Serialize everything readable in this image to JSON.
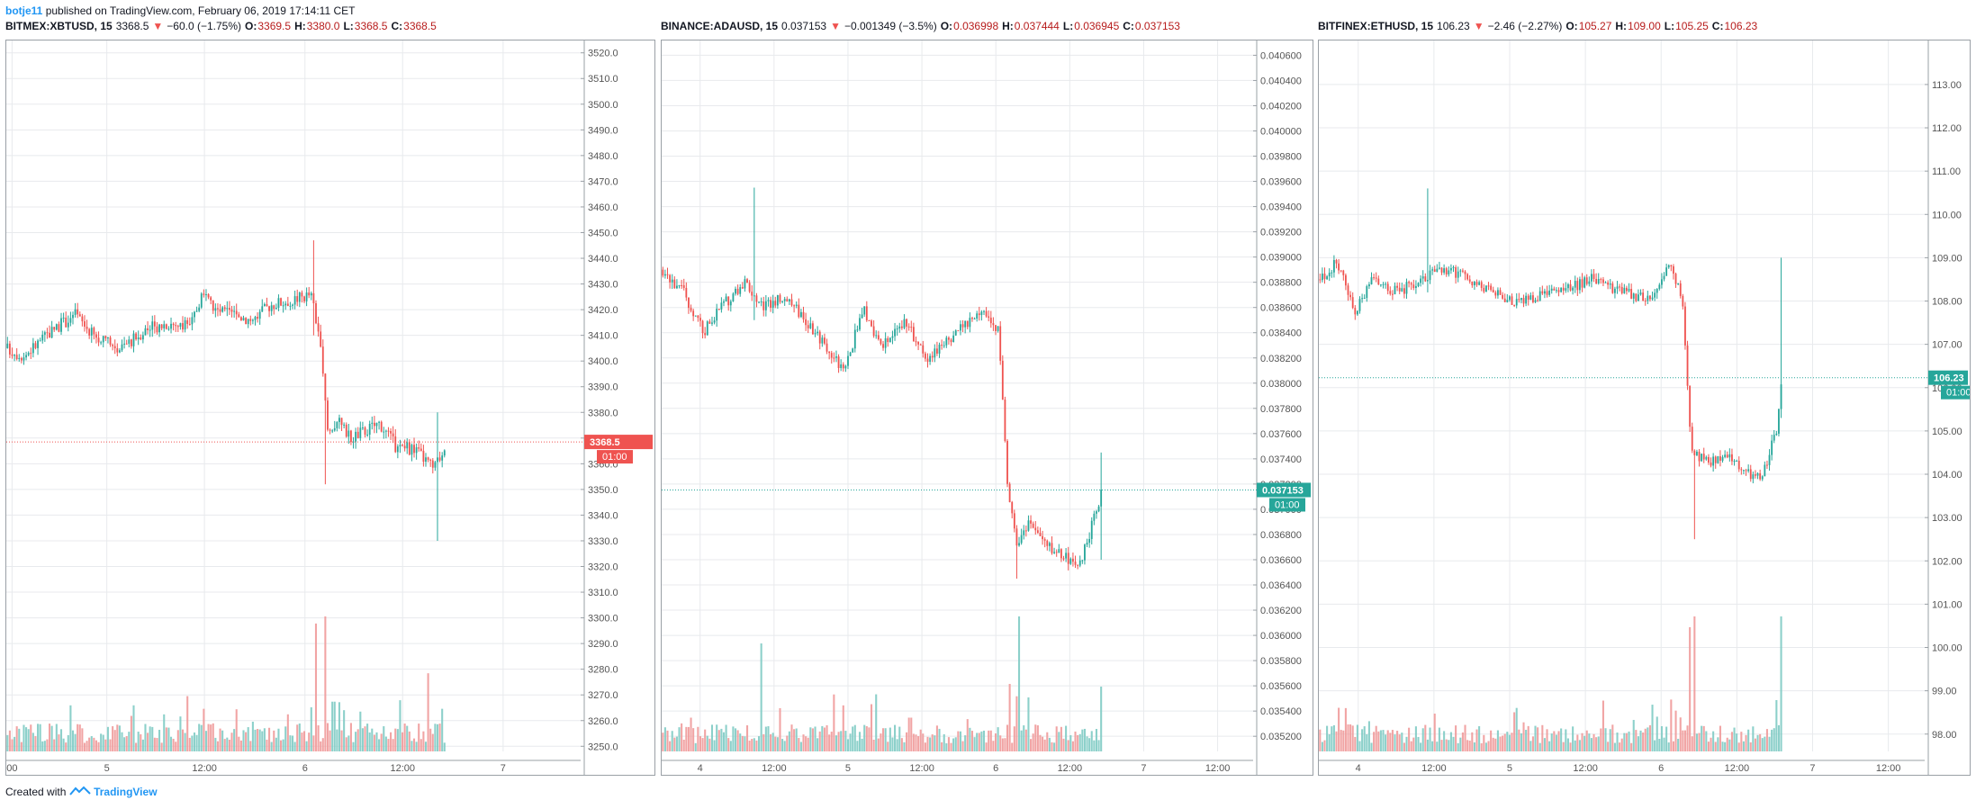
{
  "header": {
    "author": "botje11",
    "published_text": "published on TradingView.com, February 06, 2019 17:14:11 CET"
  },
  "footer": {
    "created_with": "Created with",
    "brand": "TradingView"
  },
  "colors": {
    "up": "#26a69a",
    "down": "#ef5350",
    "up_volume": "#80cbc4",
    "down_volume": "#ef9a9a",
    "grid": "#e8eaed"
  },
  "chart_data": [
    {
      "type": "candlestick",
      "symbol": "BITMEX:XBTUSD, 15",
      "last": "3368.5",
      "change": "−60.0 (−1.75%)",
      "open_label": "O:",
      "open": "3369.5",
      "high_label": "H:",
      "high": "3380.0",
      "low_label": "L:",
      "low": "3368.5",
      "close_label": "C:",
      "close": "3368.5",
      "price_label": "3368.5",
      "countdown_label": "01:00",
      "last_price": 3368.5,
      "last_direction": "down",
      "ylim": [
        3248,
        3522
      ],
      "y_ticks": [
        "3520.0",
        "3510.0",
        "3500.0",
        "3490.0",
        "3480.0",
        "3470.0",
        "3460.0",
        "3450.0",
        "3440.0",
        "3430.0",
        "3420.0",
        "3410.0",
        "3400.0",
        "3390.0",
        "3380.0",
        "3370.0",
        "3360.0",
        "3350.0",
        "3340.0",
        "3330.0",
        "3320.0",
        "3310.0",
        "3300.0",
        "3290.0",
        "3280.0",
        "3270.0",
        "3260.0",
        "3250.0"
      ],
      "x_ticks": [
        "00",
        "5",
        "12:00",
        "6",
        "12:00",
        "7"
      ],
      "x_tick_positions": [
        0.01,
        0.175,
        0.345,
        0.52,
        0.69,
        0.865
      ],
      "data_extent": 0.765,
      "anchors": [
        [
          0,
          3405
        ],
        [
          0.03,
          3402
        ],
        [
          0.08,
          3412
        ],
        [
          0.12,
          3418
        ],
        [
          0.16,
          3408
        ],
        [
          0.2,
          3405
        ],
        [
          0.24,
          3412
        ],
        [
          0.28,
          3415
        ],
        [
          0.32,
          3413
        ],
        [
          0.34,
          3426
        ],
        [
          0.36,
          3420
        ],
        [
          0.4,
          3418
        ],
        [
          0.43,
          3416
        ],
        [
          0.46,
          3422
        ],
        [
          0.5,
          3424
        ],
        [
          0.53,
          3426
        ],
        [
          0.545,
          3410
        ],
        [
          0.56,
          3372
        ],
        [
          0.575,
          3377
        ],
        [
          0.6,
          3370
        ],
        [
          0.65,
          3376
        ],
        [
          0.68,
          3366
        ],
        [
          0.71,
          3366
        ],
        [
          0.745,
          3358
        ],
        [
          0.765,
          3368.5
        ]
      ],
      "volatility": 3.2,
      "spikes": [
        [
          0.536,
          3447,
          3410
        ],
        [
          0.555,
          3352,
          3366
        ],
        [
          0.75,
          3380,
          3330
        ]
      ],
      "volume_max": 95,
      "volume_spikes": [
        [
          0.54,
          90
        ],
        [
          0.555,
          95
        ],
        [
          0.57,
          35
        ],
        [
          0.345,
          30
        ],
        [
          0.22,
          25
        ],
        [
          0.735,
          55
        ],
        [
          0.76,
          30
        ],
        [
          0.6,
          20
        ]
      ]
    },
    {
      "type": "candlestick",
      "symbol": "BINANCE:ADAUSD, 15",
      "last": "0.037153",
      "change": "−0.001349 (−3.5%)",
      "open_label": "O:",
      "open": "0.036998",
      "high_label": "H:",
      "high": "0.037444",
      "low_label": "L:",
      "low": "0.036945",
      "close_label": "C:",
      "close": "0.037153",
      "price_label": "0.037153",
      "countdown_label": "01:00",
      "last_price": 0.037153,
      "last_direction": "up",
      "ylim": [
        0.03508,
        0.04066
      ],
      "y_ticks": [
        "0.040600",
        "0.040400",
        "0.040200",
        "0.040000",
        "0.039800",
        "0.039600",
        "0.039400",
        "0.039200",
        "0.039000",
        "0.038800",
        "0.038600",
        "0.038400",
        "0.038200",
        "0.038000",
        "0.037800",
        "0.037600",
        "0.037400",
        "0.037200",
        "0.037000",
        "0.036800",
        "0.036600",
        "0.036400",
        "0.036200",
        "0.036000",
        "0.035800",
        "0.035600",
        "0.035400",
        "0.035200"
      ],
      "x_ticks": [
        "4",
        "12:00",
        "5",
        "12:00",
        "6",
        "12:00",
        "7",
        "12:00"
      ],
      "x_tick_positions": [
        0.065,
        0.19,
        0.315,
        0.44,
        0.565,
        0.69,
        0.815,
        0.94
      ],
      "data_extent": 0.745,
      "anchors": [
        [
          0,
          0.0389
        ],
        [
          0.04,
          0.0387
        ],
        [
          0.07,
          0.0384
        ],
        [
          0.1,
          0.0386
        ],
        [
          0.14,
          0.0388
        ],
        [
          0.17,
          0.0386
        ],
        [
          0.21,
          0.0387
        ],
        [
          0.26,
          0.0384
        ],
        [
          0.31,
          0.0381
        ],
        [
          0.34,
          0.0386
        ],
        [
          0.37,
          0.0383
        ],
        [
          0.41,
          0.0385
        ],
        [
          0.45,
          0.0382
        ],
        [
          0.5,
          0.0384
        ],
        [
          0.54,
          0.0386
        ],
        [
          0.57,
          0.0384
        ],
        [
          0.585,
          0.0372
        ],
        [
          0.6,
          0.0367
        ],
        [
          0.62,
          0.0369
        ],
        [
          0.65,
          0.0367
        ],
        [
          0.69,
          0.0366
        ],
        [
          0.71,
          0.0366
        ],
        [
          0.745,
          0.037153
        ]
      ],
      "volatility": 6e-05,
      "spikes": [
        [
          0.155,
          0.03955,
          0.0385
        ],
        [
          0.6,
          0.03645,
          0.0368
        ],
        [
          0.745,
          0.03745,
          0.0366
        ]
      ],
      "volume_max": 100,
      "volume_spikes": [
        [
          0.17,
          80
        ],
        [
          0.605,
          100
        ],
        [
          0.59,
          50
        ],
        [
          0.745,
          48
        ],
        [
          0.62,
          40
        ],
        [
          0.05,
          25
        ],
        [
          0.42,
          25
        ]
      ]
    },
    {
      "type": "candlestick",
      "symbol": "BITFINEX:ETHUSD, 15",
      "last": "106.23",
      "change": "−2.46 (−2.27%)",
      "open_label": "O:",
      "open": "105.27",
      "high_label": "H:",
      "high": "109.00",
      "low_label": "L:",
      "low": "105.25",
      "close_label": "C:",
      "close": "106.23",
      "price_label": "106.23",
      "countdown_label": "01:00",
      "last_price": 106.23,
      "last_direction": "up",
      "ylim": [
        97.6,
        113.85
      ],
      "y_ticks": [
        "113.00",
        "112.00",
        "111.00",
        "110.00",
        "109.00",
        "108.00",
        "107.00",
        "106.00",
        "105.00",
        "104.00",
        "103.00",
        "102.00",
        "101.00",
        "100.00",
        "99.00",
        "98.00"
      ],
      "x_ticks": [
        "4",
        "12:00",
        "5",
        "12:00",
        "6",
        "12:00",
        "7",
        "12:00"
      ],
      "x_tick_positions": [
        0.065,
        0.19,
        0.315,
        0.44,
        0.565,
        0.69,
        0.815,
        0.94
      ],
      "data_extent": 0.765,
      "anchors": [
        [
          0,
          108.5
        ],
        [
          0.03,
          108.9
        ],
        [
          0.06,
          107.8
        ],
        [
          0.09,
          108.5
        ],
        [
          0.13,
          108.2
        ],
        [
          0.18,
          108.6
        ],
        [
          0.22,
          108.7
        ],
        [
          0.29,
          108.2
        ],
        [
          0.32,
          108.0
        ],
        [
          0.36,
          108.1
        ],
        [
          0.4,
          108.2
        ],
        [
          0.45,
          108.5
        ],
        [
          0.5,
          108.2
        ],
        [
          0.55,
          108.0
        ],
        [
          0.58,
          108.9
        ],
        [
          0.6,
          108.0
        ],
        [
          0.615,
          104.5
        ],
        [
          0.64,
          104.3
        ],
        [
          0.68,
          104.4
        ],
        [
          0.71,
          104.0
        ],
        [
          0.73,
          103.9
        ],
        [
          0.755,
          105.0
        ],
        [
          0.765,
          106.23
        ]
      ],
      "volatility": 0.16,
      "spikes": [
        [
          0.18,
          110.6,
          108.2
        ],
        [
          0.62,
          102.5,
          104.2
        ],
        [
          0.762,
          109.0,
          105.3
        ]
      ],
      "volume_max": 100,
      "volume_spikes": [
        [
          0.612,
          92
        ],
        [
          0.62,
          100
        ],
        [
          0.765,
          100
        ],
        [
          0.755,
          38
        ],
        [
          0.19,
          28
        ],
        [
          0.05,
          20
        ],
        [
          0.64,
          15
        ]
      ]
    }
  ]
}
